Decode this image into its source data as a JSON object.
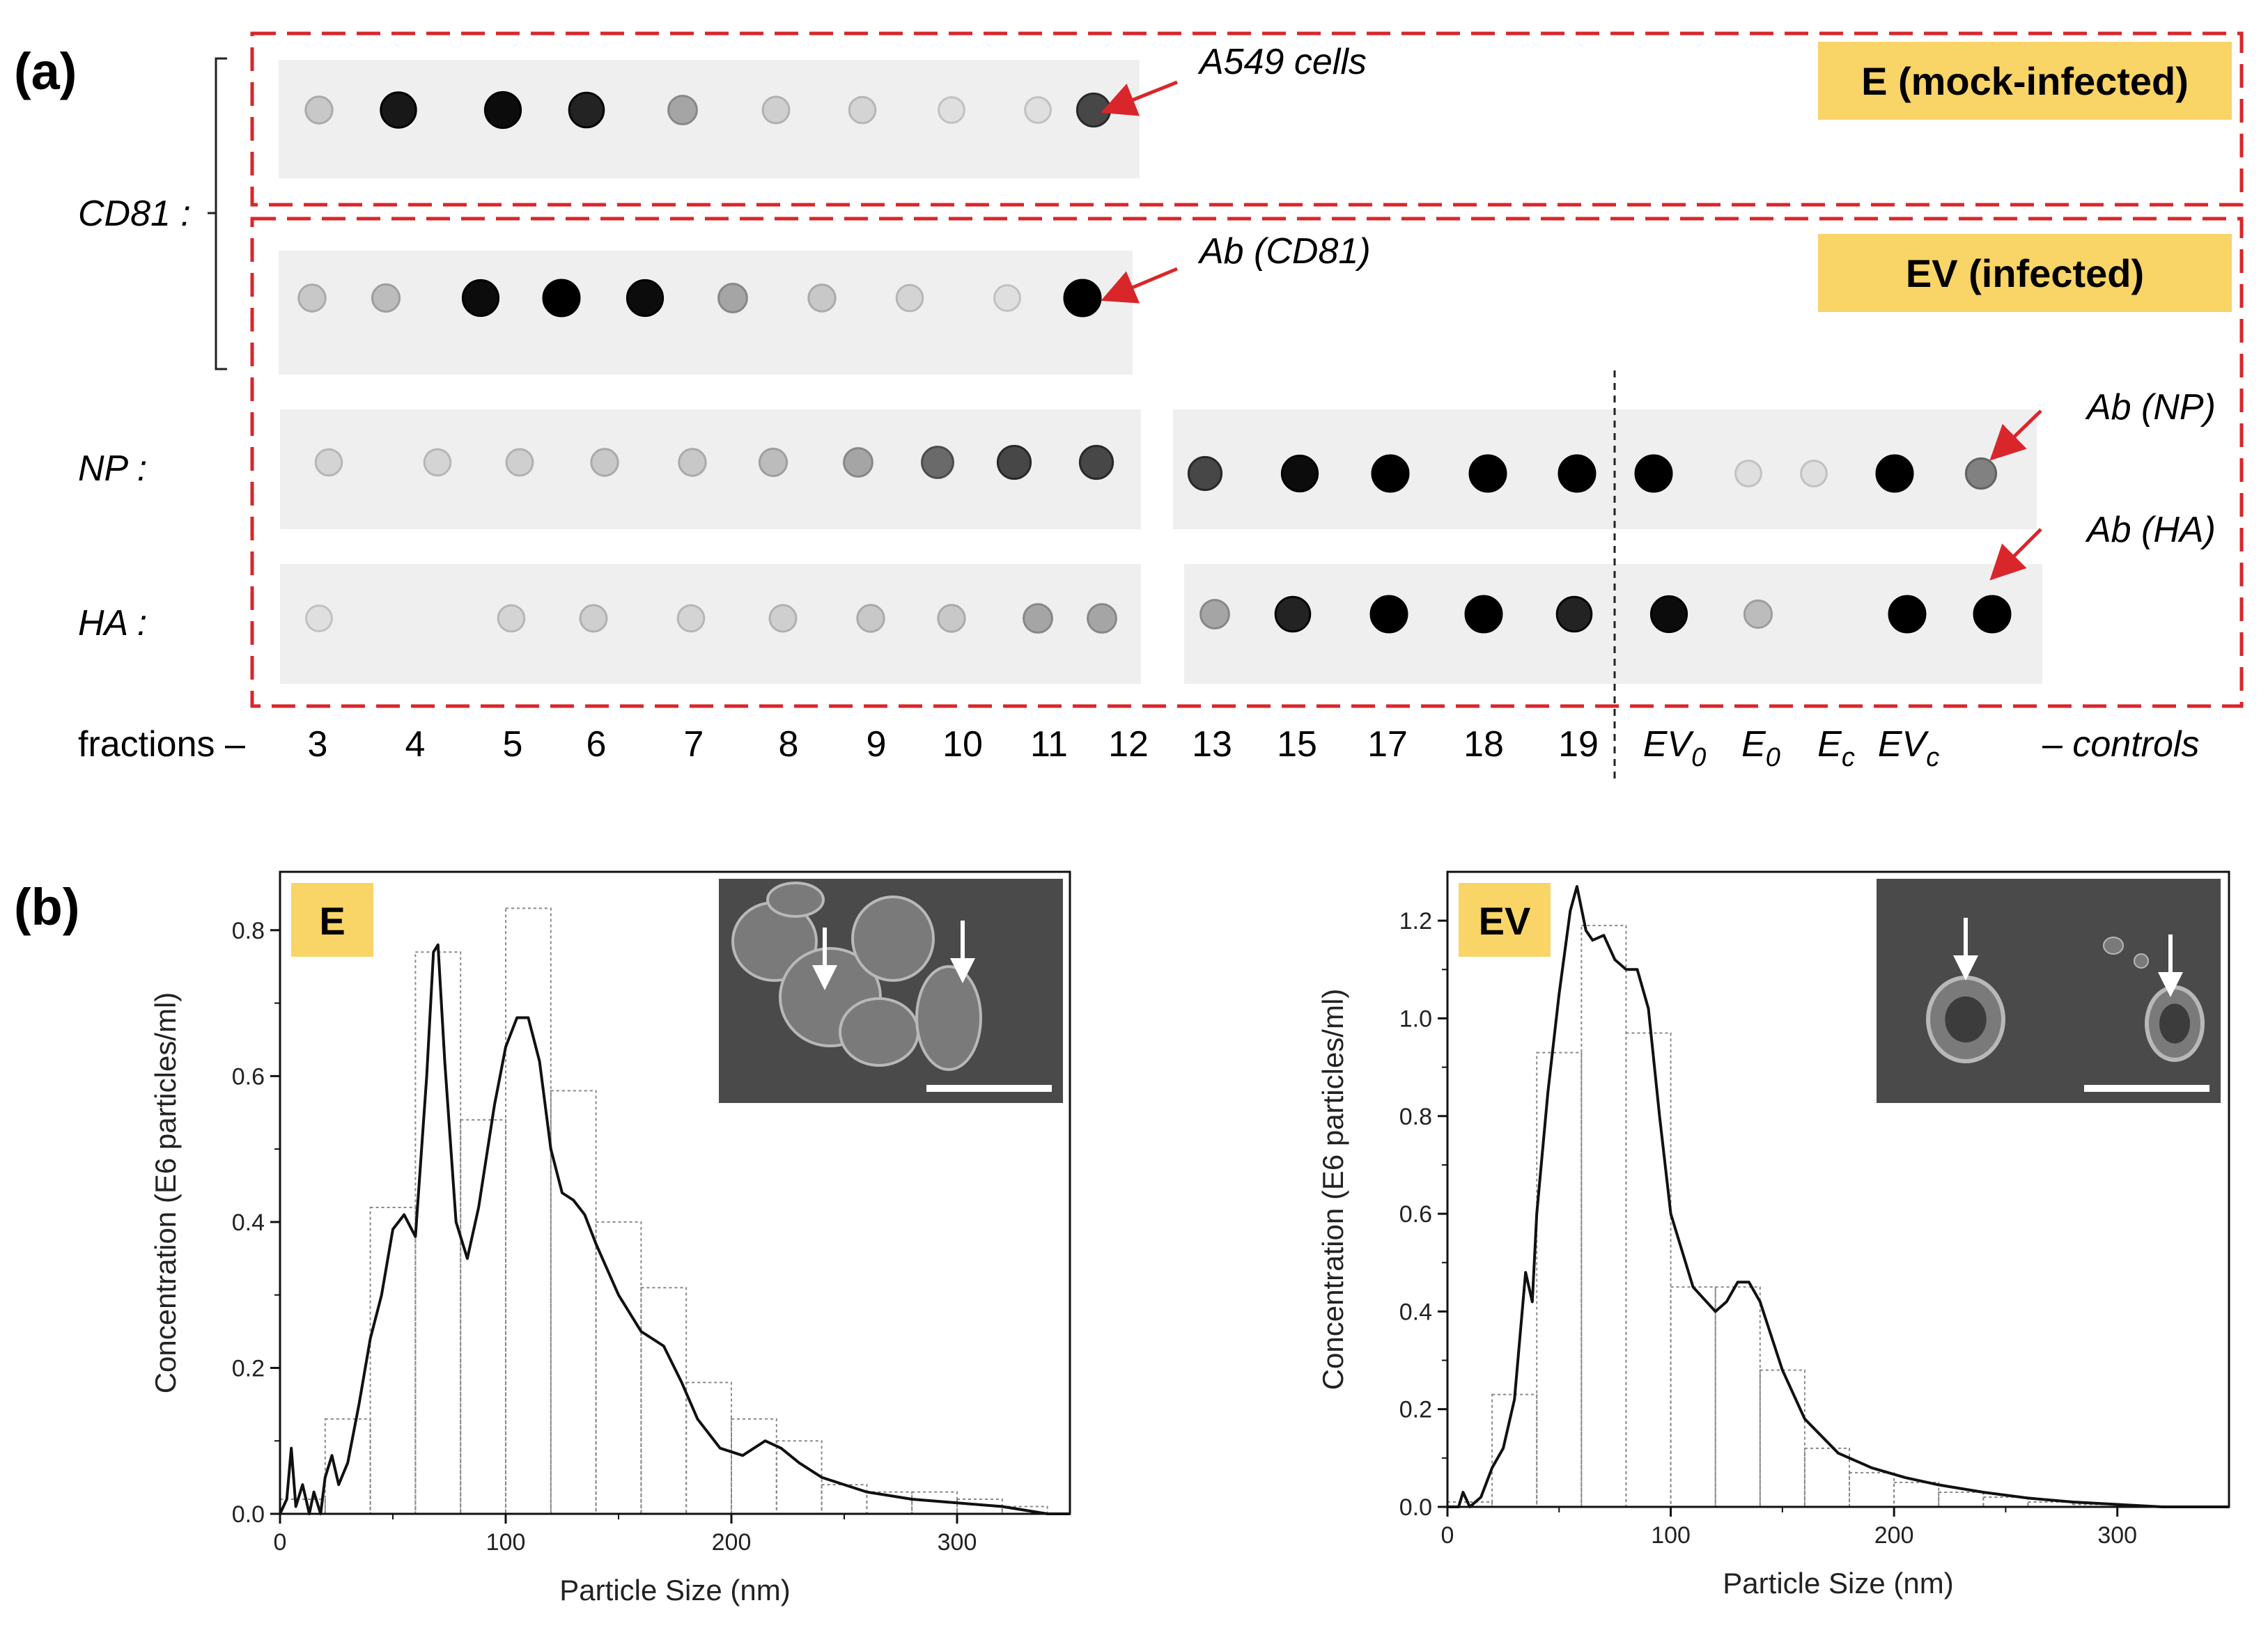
{
  "colors": {
    "badge": "#f9d466",
    "dash_border": "#d9262b",
    "arrow": "#d9262b",
    "strip": "#efefef",
    "inset_bg": "#4a4a4a"
  },
  "panel_a": {
    "letter": "(a)",
    "cd81_label": "CD81 :",
    "np_label": "NP :",
    "ha_label": "HA :",
    "badge_mock": "E (mock-infected)",
    "badge_infected": "EV (infected)",
    "arrow_a549": "A549 cells",
    "arrow_cd81": "Ab (CD81)",
    "arrow_np": "Ab (NP)",
    "arrow_ha": "Ab (HA)",
    "fractions_label": "fractions –",
    "fractions": [
      "3",
      "4",
      "5",
      "6",
      "7",
      "8",
      "9",
      "10",
      "11",
      "12",
      "13",
      "15",
      "17",
      "18",
      "19"
    ],
    "controls": [
      {
        "base": "EV",
        "sub": "0"
      },
      {
        "base": "E",
        "sub": "0"
      },
      {
        "base": "E",
        "sub": "c"
      },
      {
        "base": "EV",
        "sub": "c"
      }
    ],
    "controls_label": "– controls",
    "blots": {
      "cd81_mock": [
        0.15,
        0.9,
        0.95,
        0.85,
        0.3,
        0.12,
        0.1,
        0.05,
        0.05,
        0.7
      ],
      "cd81_infected": [
        0.15,
        0.2,
        0.95,
        1.0,
        0.95,
        0.3,
        0.15,
        0.1,
        0.05,
        1.0
      ],
      "np_left": [
        0.1,
        0.1,
        0.12,
        0.15,
        0.15,
        0.2,
        0.3,
        0.55,
        0.7,
        0.7
      ],
      "np_right": [
        0.7,
        0.95,
        1.0,
        1.0,
        1.0,
        1.0,
        0.05,
        0.05,
        1.0,
        0.45
      ],
      "ha_left": [
        0.05,
        0.1,
        0.12,
        0.1,
        0.12,
        0.15,
        0.15,
        0.3,
        0.3
      ],
      "ha_right": [
        0.3,
        0.85,
        1.0,
        1.0,
        0.85,
        0.95,
        0.2,
        1.0,
        1.0
      ]
    }
  },
  "panel_b": {
    "letter": "(b)",
    "inset_scale_bar": true
  },
  "chart_data": [
    {
      "type": "bar",
      "title": "E",
      "xlabel": "Particle Size (nm)",
      "ylabel": "Concentration (E6 particles/ml)",
      "xlim": [
        0,
        350
      ],
      "ylim": [
        0,
        0.88
      ],
      "xticks": [
        0,
        100,
        200,
        300
      ],
      "yticks": [
        0.0,
        0.2,
        0.4,
        0.6,
        0.8
      ],
      "ytick_labels": [
        "0.0",
        "0.2",
        "0.4",
        "0.6",
        "0.8"
      ],
      "bin_edges": [
        0,
        20,
        40,
        60,
        80,
        100,
        120,
        140,
        160,
        180,
        200,
        220,
        240,
        260,
        280,
        300,
        320,
        340
      ],
      "values": [
        0.02,
        0.13,
        0.42,
        0.77,
        0.54,
        0.83,
        0.58,
        0.4,
        0.31,
        0.18,
        0.13,
        0.1,
        0.04,
        0.03,
        0.03,
        0.02,
        0.01
      ],
      "curve": {
        "x": [
          0,
          3,
          5,
          7,
          10,
          13,
          15,
          18,
          20,
          23,
          26,
          30,
          35,
          40,
          45,
          50,
          55,
          60,
          65,
          68,
          70,
          73,
          78,
          83,
          88,
          95,
          100,
          105,
          110,
          115,
          120,
          125,
          130,
          135,
          140,
          150,
          160,
          170,
          178,
          185,
          195,
          205,
          215,
          222,
          230,
          240,
          260,
          280,
          300,
          320,
          340,
          350
        ],
        "y": [
          0.0,
          0.02,
          0.09,
          0.01,
          0.04,
          0.0,
          0.03,
          0.0,
          0.05,
          0.08,
          0.04,
          0.07,
          0.15,
          0.24,
          0.3,
          0.39,
          0.41,
          0.38,
          0.6,
          0.77,
          0.78,
          0.62,
          0.4,
          0.35,
          0.42,
          0.56,
          0.64,
          0.68,
          0.68,
          0.62,
          0.5,
          0.44,
          0.43,
          0.41,
          0.37,
          0.3,
          0.25,
          0.23,
          0.18,
          0.13,
          0.09,
          0.08,
          0.1,
          0.09,
          0.07,
          0.05,
          0.03,
          0.02,
          0.015,
          0.01,
          0.0,
          0.0
        ]
      },
      "inset": true
    },
    {
      "type": "bar",
      "title": "EV",
      "xlabel": "Particle Size (nm)",
      "ylabel": "Concentration (E6 particles/ml)",
      "xlim": [
        0,
        350
      ],
      "ylim": [
        0,
        1.3
      ],
      "xticks": [
        0,
        100,
        200,
        300
      ],
      "yticks": [
        0.0,
        0.2,
        0.4,
        0.6,
        0.8,
        1.0,
        1.2
      ],
      "ytick_labels": [
        "0.0",
        "0.2",
        "0.4",
        "0.6",
        "0.8",
        "1.0",
        "1.2"
      ],
      "bin_edges": [
        0,
        20,
        40,
        60,
        80,
        100,
        120,
        140,
        160,
        180,
        200,
        220,
        240,
        260,
        280,
        300,
        320,
        340
      ],
      "values": [
        0.01,
        0.23,
        0.93,
        1.19,
        0.97,
        0.45,
        0.45,
        0.28,
        0.12,
        0.07,
        0.05,
        0.03,
        0.02,
        0.01,
        0.005,
        0.0,
        0.0
      ],
      "curve": {
        "x": [
          0,
          5,
          7,
          10,
          15,
          20,
          25,
          30,
          35,
          38,
          40,
          45,
          50,
          55,
          58,
          62,
          65,
          70,
          75,
          80,
          85,
          90,
          95,
          100,
          110,
          120,
          125,
          130,
          135,
          140,
          150,
          160,
          175,
          190,
          205,
          220,
          240,
          260,
          280,
          300,
          320,
          350
        ],
        "y": [
          0.0,
          0.0,
          0.03,
          0.0,
          0.02,
          0.08,
          0.12,
          0.22,
          0.48,
          0.42,
          0.6,
          0.85,
          1.05,
          1.22,
          1.27,
          1.18,
          1.16,
          1.17,
          1.12,
          1.1,
          1.1,
          1.02,
          0.8,
          0.6,
          0.45,
          0.4,
          0.42,
          0.46,
          0.46,
          0.42,
          0.28,
          0.18,
          0.11,
          0.08,
          0.06,
          0.045,
          0.03,
          0.018,
          0.01,
          0.005,
          0.0,
          0.0
        ]
      },
      "inset": true
    }
  ]
}
